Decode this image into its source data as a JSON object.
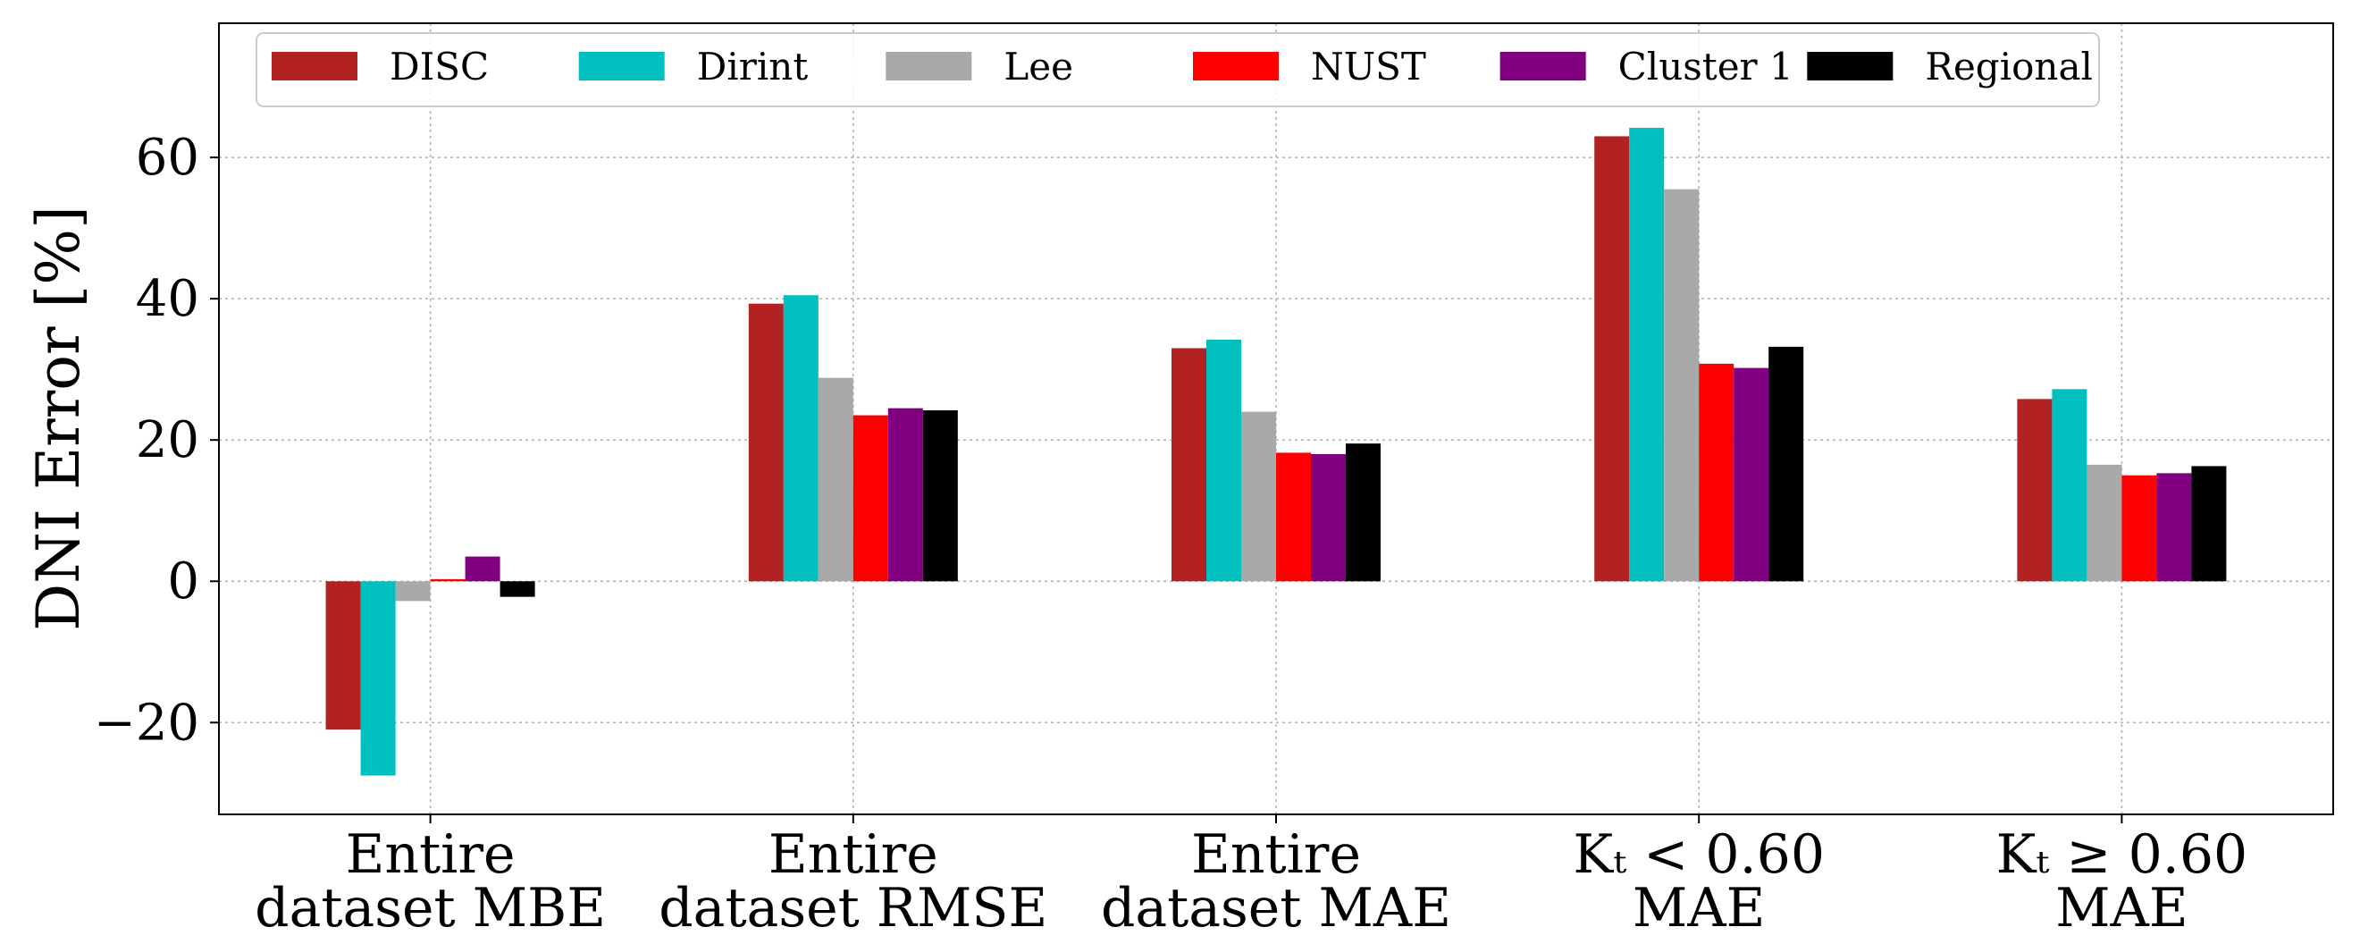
{
  "chart_data": {
    "type": "bar",
    "title": "",
    "xlabel": "",
    "ylabel": "DNI Error [%]",
    "ylim": [
      -33,
      79
    ],
    "yticks": [
      -20,
      0,
      20,
      40,
      60
    ],
    "ytick_labels": [
      "−20",
      "0",
      "20",
      "40",
      "60"
    ],
    "grid": true,
    "legend_position": "top",
    "categories": [
      {
        "line1": "Entire",
        "line2": "dataset MBE"
      },
      {
        "line1": "Entire",
        "line2": "dataset RMSE"
      },
      {
        "line1": "Entire",
        "line2": "dataset MAE"
      },
      {
        "line1": "Kₜ < 0.60",
        "line2": "MAE"
      },
      {
        "line1": "Kₜ ≥ 0.60",
        "line2": "MAE"
      }
    ],
    "series": [
      {
        "name": "DISC",
        "color": "#b22222",
        "values": [
          -21,
          39.3,
          33,
          63,
          25.8
        ]
      },
      {
        "name": "Dirint",
        "color": "#00bfbf",
        "values": [
          -27.5,
          40.5,
          34.2,
          64.2,
          27.2
        ]
      },
      {
        "name": "Lee",
        "color": "#a9a9a9",
        "values": [
          -2.8,
          28.8,
          24,
          55.5,
          16.5
        ]
      },
      {
        "name": "NUST",
        "color": "#ff0000",
        "values": [
          0.3,
          23.5,
          18.2,
          30.8,
          15
        ]
      },
      {
        "name": "Cluster 1",
        "color": "#800080",
        "values": [
          3.5,
          24.5,
          18,
          30.2,
          15.3
        ]
      },
      {
        "name": "Regional",
        "color": "#000000",
        "values": [
          -2.2,
          24.2,
          19.5,
          33.2,
          16.3
        ]
      }
    ]
  }
}
